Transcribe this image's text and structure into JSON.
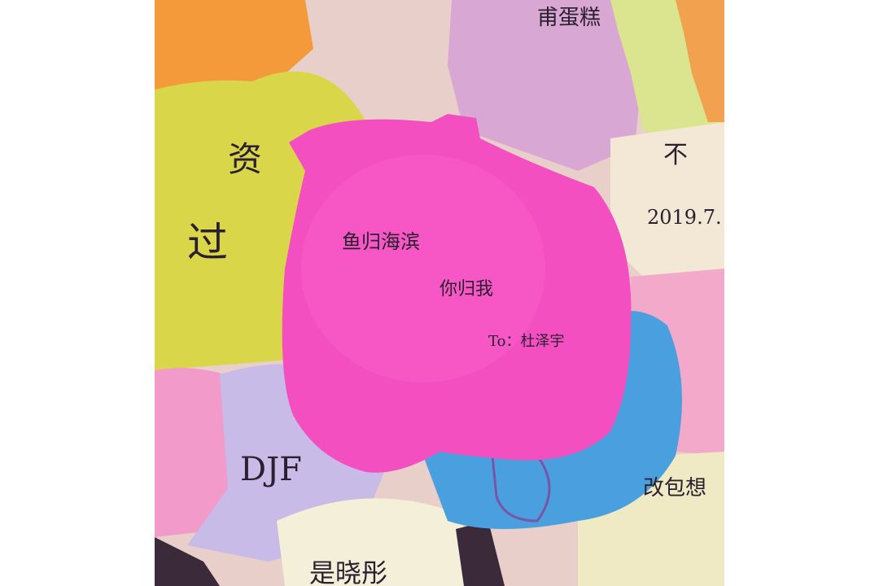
{
  "photo": {
    "description_alt": "Wall of colourful paper sticky notes with handwritten messages",
    "main_note": {
      "line1": "鱼归海滨",
      "line2": "你归我",
      "line3": "To：杜泽宇",
      "color": "#f34fc1"
    },
    "background_notes": {
      "top_right": "甫蛋糕",
      "left_fragment_1": "资",
      "left_fragment_2": "过",
      "right_fragment": "不",
      "date": "2019.7.",
      "bottom_left": "DJF",
      "bottom_right": "改包想",
      "bottom_center": "是晓彤"
    },
    "colors": {
      "orange": "#f59a3a",
      "yellow": "#d9d64a",
      "lavender": "#c7b7e6",
      "blue": "#4aa0de",
      "pink_light": "#f29ac9",
      "peach": "#f3e7d5",
      "lilac": "#d8a9d6",
      "cream": "#f1edc1"
    }
  }
}
